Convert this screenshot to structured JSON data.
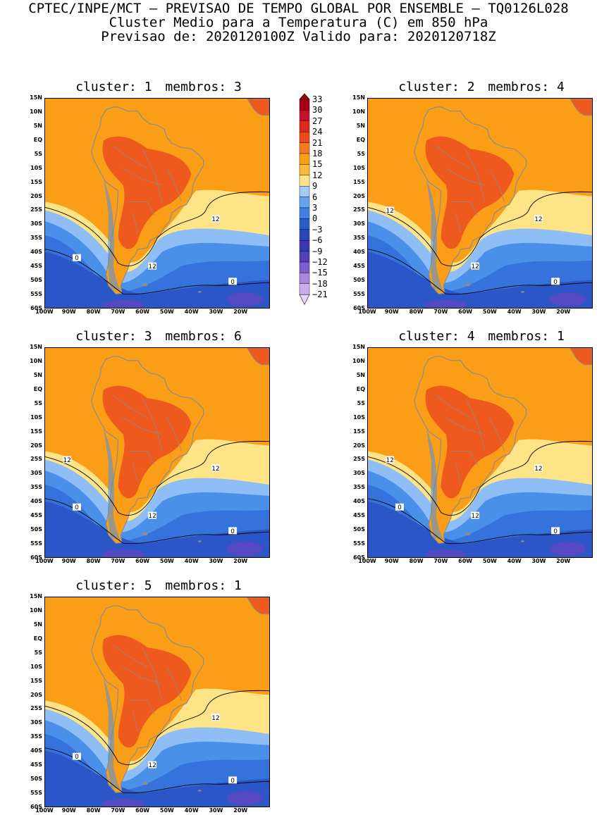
{
  "header": {
    "line1": "CPTEC/INPE/MCT – PREVISAO DE TEMPO GLOBAL POR ENSEMBLE – TQ0126L028",
    "line2": "Cluster Medio para a Temperatura (C) em 850 hPa",
    "line3": "Previsao de: 2020120100Z   Valido para: 2020120718Z"
  },
  "panels": [
    {
      "cluster_label": "cluster: 1",
      "members_label": "membros: 3",
      "labels12": [
        "12",
        "12"
      ],
      "labels0": [
        "0",
        "0"
      ]
    },
    {
      "cluster_label": "cluster: 2",
      "members_label": "membros: 4",
      "labels12": [
        "12",
        "12",
        "12"
      ],
      "labels0": [
        "0"
      ]
    },
    {
      "cluster_label": "cluster: 3",
      "members_label": "membros: 6",
      "labels12": [
        "12",
        "12",
        "12"
      ],
      "labels0": [
        "0",
        "0"
      ]
    },
    {
      "cluster_label": "cluster: 4",
      "members_label": "membros: 1",
      "labels12": [
        "12",
        "12",
        "12"
      ],
      "labels0": [
        "0",
        "0"
      ]
    },
    {
      "cluster_label": "cluster: 5",
      "members_label": "membros: 1",
      "labels12": [
        "12",
        "12"
      ],
      "labels0": [
        "0",
        "0"
      ]
    }
  ],
  "axes": {
    "lat_ticks": [
      "15N",
      "10N",
      "5N",
      "EQ",
      "5S",
      "10S",
      "15S",
      "20S",
      "25S",
      "30S",
      "35S",
      "40S",
      "45S",
      "50S",
      "55S",
      "60S"
    ],
    "lon_ticks": [
      "100W",
      "90W",
      "80W",
      "70W",
      "60W",
      "50W",
      "40W",
      "30W",
      "20W"
    ]
  },
  "colorbar": {
    "labels": [
      "33",
      "30",
      "27",
      "24",
      "21",
      "18",
      "15",
      "12",
      "9",
      "6",
      "3",
      "0",
      "−3",
      "−6",
      "−9",
      "−12",
      "−15",
      "−18",
      "−21"
    ],
    "colors": [
      "#a50012",
      "#c8102e",
      "#dc2a1c",
      "#ee4a1a",
      "#f47b20",
      "#fa9e18",
      "#fcba3a",
      "#fee486",
      "#a2cbf8",
      "#62a4f0",
      "#3f80e0",
      "#2a5cc8",
      "#2848b8",
      "#3a38b0",
      "#5440b8",
      "#7a5ed0",
      "#a688e0",
      "#c8b0ec",
      "#e4d8f6"
    ]
  },
  "colors": {
    "hot": "#ee5a1e",
    "warm": "#fa9e18",
    "mild": "#fcb43a",
    "cool": "#fee486",
    "light_blue": "#8fbef6",
    "blue": "#4a90e8",
    "mid_blue": "#3672dc",
    "deep_blue": "#2a56c8",
    "purple": "#5648c0",
    "land_gray": "#8c8c8c",
    "contour": "#000000"
  }
}
